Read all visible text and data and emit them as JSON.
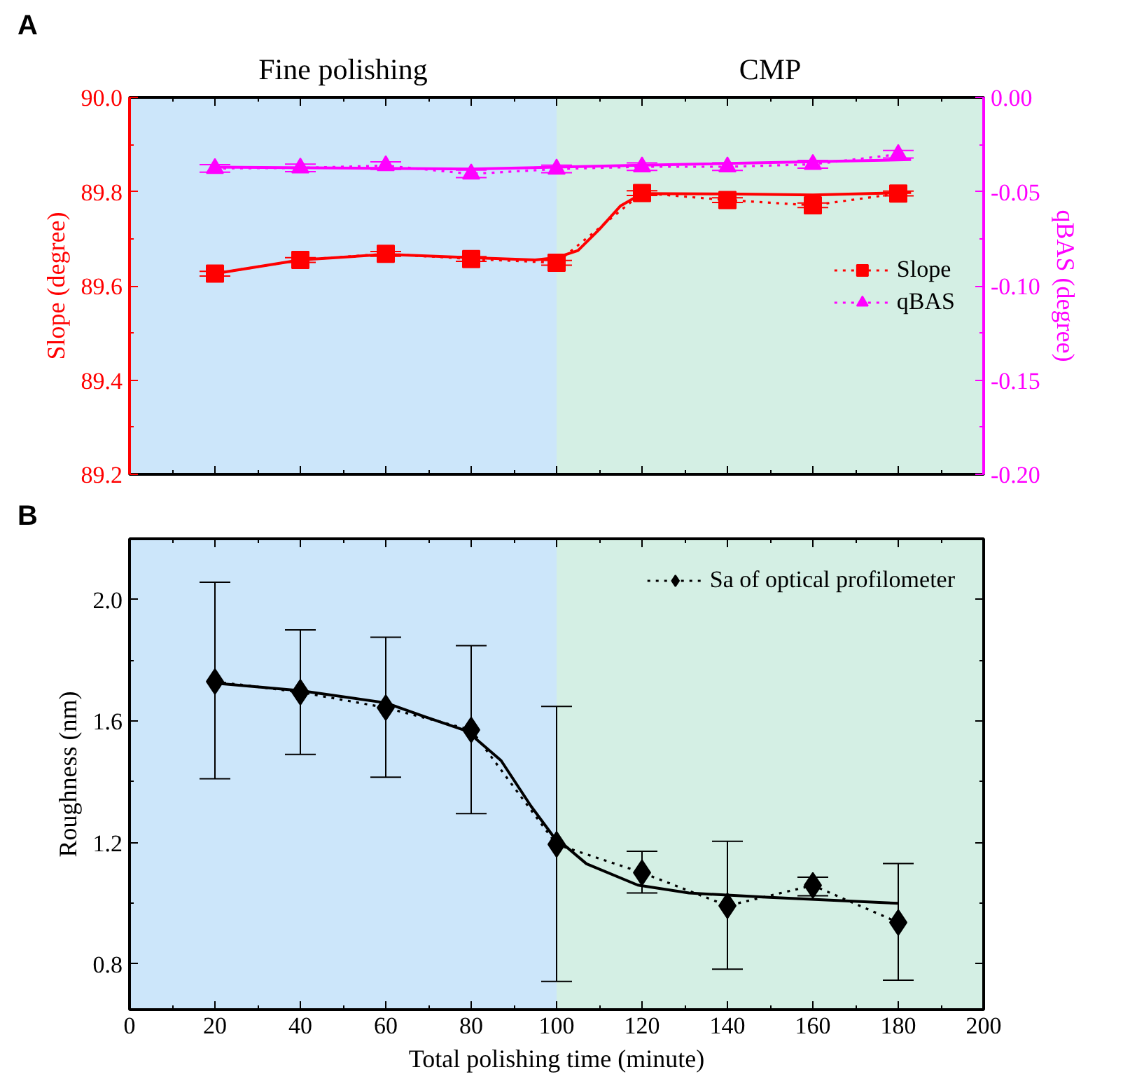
{
  "chart_data": [
    {
      "type": "line",
      "annotations": [
        "A"
      ],
      "ylabel": "Slope (degree)",
      "y2label": "qBAS (degree)",
      "xlim": [
        0,
        200
      ],
      "xticks": [
        0,
        20,
        40,
        60,
        80,
        100,
        120,
        140,
        160,
        180,
        200
      ],
      "ylim": [
        89.2,
        90.0
      ],
      "yticks": [
        89.2,
        89.4,
        89.6,
        89.8,
        {
          "value": 90.0,
          "label": "90.0"
        }
      ],
      "y2lim": [
        -0.2,
        0.0
      ],
      "y2ticks": [
        {
          "value": -0.2,
          "label": "-0.20"
        },
        {
          "value": -0.15,
          "label": "-0.15"
        },
        {
          "value": -0.1,
          "label": "-0.10"
        },
        {
          "value": -0.05,
          "label": "-0.05"
        },
        {
          "value": 0.0,
          "label": "0.00"
        }
      ],
      "tick_labels": "y",
      "legend": "right",
      "bands": [
        {
          "axis": "x",
          "from": 0,
          "to": 100,
          "label": "Fine polishing",
          "color": "#cce6fa"
        },
        {
          "axis": "x",
          "from": 100,
          "to": 200,
          "label": "CMP",
          "color": "#d4efe4"
        }
      ],
      "series": [
        {
          "name": "Slope",
          "color": "#ff0000",
          "marker": "square",
          "line_style": "dotted",
          "x": [
            20,
            40,
            60,
            80,
            100,
            120,
            140,
            160,
            180
          ],
          "values": [
            89.626,
            89.655,
            89.668,
            89.657,
            89.649,
            89.797,
            89.782,
            89.771,
            89.796
          ],
          "errors": [
            0.005,
            0.005,
            0.005,
            0.005,
            0.005,
            0.005,
            0.005,
            0.005,
            0.005
          ]
        },
        {
          "name": "qBAS",
          "color": "#ff00ff",
          "marker": "triangle",
          "line_style": "dotted",
          "axis": "y2",
          "x": [
            20,
            40,
            60,
            80,
            100,
            120,
            140,
            160,
            180
          ],
          "values": [
            -0.0377,
            -0.0374,
            -0.0362,
            -0.0406,
            -0.038,
            -0.0368,
            -0.0368,
            -0.0355,
            -0.0302
          ],
          "errors": [
            0.002,
            0.002,
            0.002,
            0.002,
            0.002,
            0.002,
            0.002,
            0.002,
            0.002
          ]
        },
        {
          "color": "#ff0000",
          "marker": "none",
          "line_style": "solid",
          "x": [
            20,
            40,
            60,
            80,
            95,
            100,
            105,
            110,
            115,
            120,
            140,
            160,
            183
          ],
          "values": [
            89.626,
            89.655,
            89.667,
            89.66,
            89.655,
            89.66,
            89.675,
            89.72,
            89.77,
            89.796,
            89.795,
            89.793,
            89.798
          ]
        },
        {
          "color": "#ff00ff",
          "marker": "none",
          "line_style": "solid",
          "axis": "y2",
          "x": [
            20,
            80,
            120,
            183
          ],
          "values": [
            -0.037,
            -0.038,
            -0.036,
            -0.033
          ]
        }
      ]
    },
    {
      "type": "line",
      "annotations": [
        "B"
      ],
      "xlabel": "Total polishing time (minute)",
      "ylabel": "Roughness (nm)",
      "xlim": [
        0,
        200
      ],
      "xticks": [
        0,
        20,
        40,
        60,
        80,
        100,
        120,
        140,
        160,
        180,
        200
      ],
      "ylim": [
        0.65,
        2.2
      ],
      "yticks": [
        0.8,
        1.2,
        1.6,
        {
          "value": 2.0,
          "label": "2.0"
        }
      ],
      "legend": "top right",
      "bands": [
        {
          "axis": "x",
          "from": 0,
          "to": 100,
          "color": "#cce6fa"
        },
        {
          "axis": "x",
          "from": 100,
          "to": 200,
          "color": "#d4efe4"
        }
      ],
      "series": [
        {
          "name": "Sa of optical profilometer",
          "color": "#000000",
          "marker": "diamond",
          "line_style": "dotted",
          "x": [
            20,
            40,
            60,
            80,
            100,
            120,
            140,
            160,
            180
          ],
          "values": [
            1.73,
            1.695,
            1.644,
            1.571,
            1.194,
            1.101,
            0.992,
            1.059,
            0.937
          ],
          "errors": [
            [
              1.41,
              2.057
            ],
            [
              1.49,
              1.9
            ],
            [
              1.415,
              1.876
            ],
            [
              1.295,
              1.848
            ],
            [
              0.743,
              1.648
            ],
            [
              1.034,
              1.171
            ],
            [
              0.783,
              1.204
            ],
            [
              1.025,
              1.086
            ],
            [
              0.747,
              1.131
            ]
          ]
        },
        {
          "color": "#000000",
          "marker": "none",
          "line_style": "solid",
          "x": [
            20,
            40,
            60,
            69,
            79,
            87,
            94,
            99,
            107,
            119,
            131,
            149,
            180
          ],
          "values": [
            1.725,
            1.7,
            1.66,
            1.615,
            1.567,
            1.47,
            1.32,
            1.225,
            1.13,
            1.06,
            1.034,
            1.02,
            1.0
          ]
        }
      ]
    }
  ]
}
